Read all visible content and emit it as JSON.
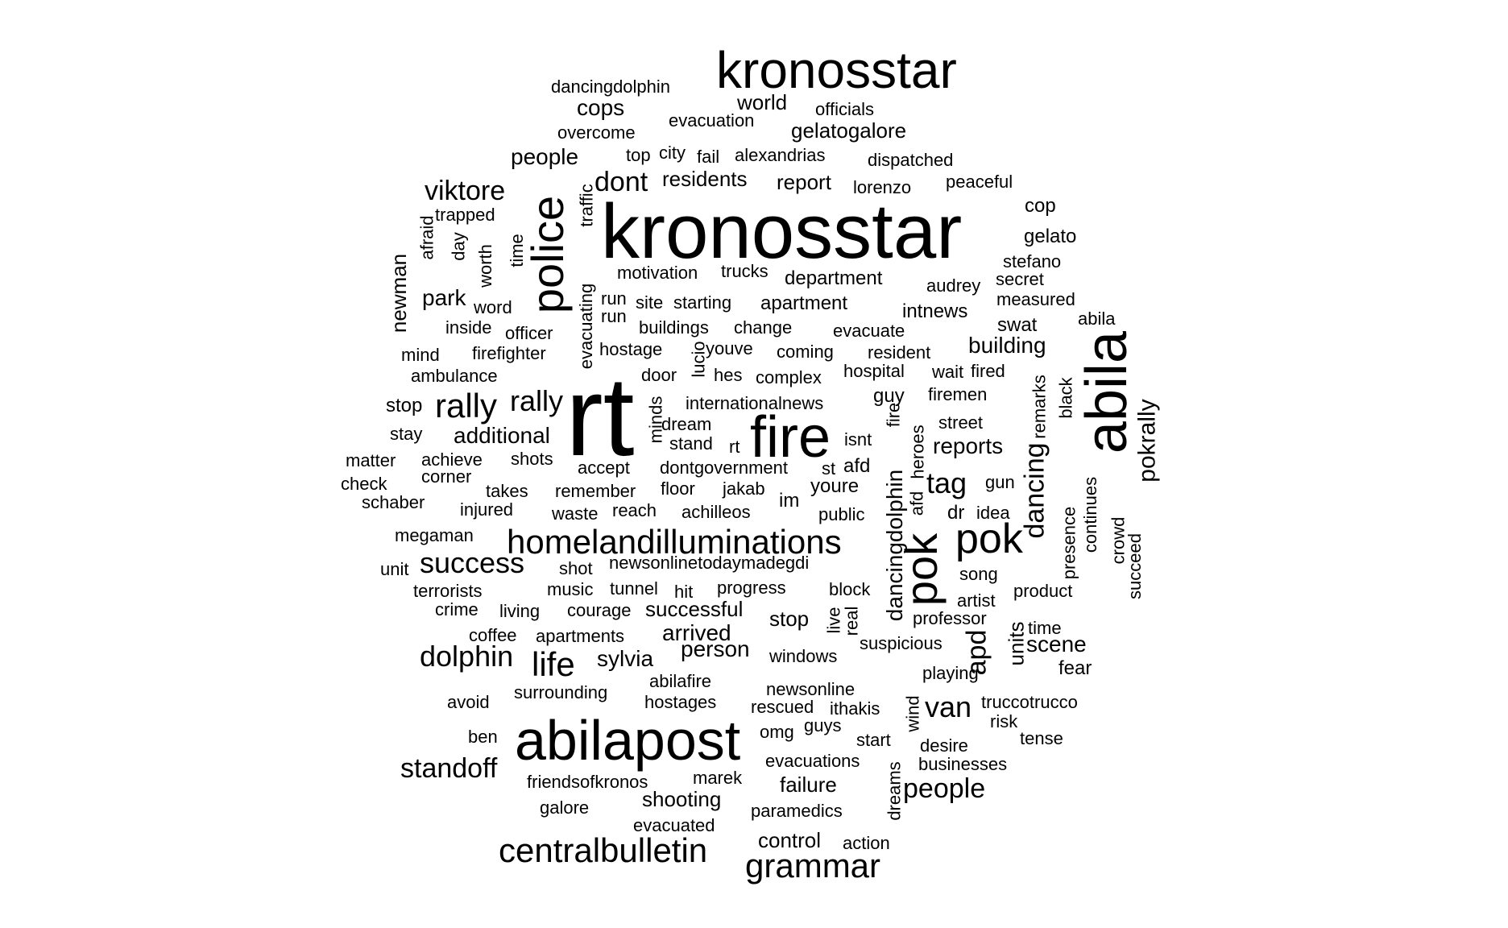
{
  "word_cloud": {
    "text_color": "#000000",
    "background_color": "#ffffff",
    "words": [
      {
        "text": "kronosstar",
        "size": "large"
      },
      {
        "text": "kronosstar",
        "size": "large"
      },
      {
        "text": "rt",
        "size": "largest"
      },
      {
        "text": "abilapost",
        "size": "large"
      },
      {
        "text": "abila",
        "size": "large"
      },
      {
        "text": "fire",
        "size": "large"
      },
      {
        "text": "police",
        "size": "large"
      },
      {
        "text": "pok",
        "size": "large"
      },
      {
        "text": "pok",
        "size": "large"
      },
      {
        "text": "homelandilluminations",
        "size": "medium"
      },
      {
        "text": "centralbulletin",
        "size": "medium"
      },
      {
        "text": "grammar",
        "size": "medium"
      },
      {
        "text": "rally",
        "size": "medium"
      },
      {
        "text": "rally",
        "size": "medium"
      },
      {
        "text": "life",
        "size": "medium"
      },
      {
        "text": "dolphin",
        "size": "medium"
      },
      {
        "text": "success",
        "size": "medium"
      },
      {
        "text": "viktore",
        "size": "medium"
      },
      {
        "text": "dancing",
        "size": "medium"
      },
      {
        "text": "van",
        "size": "medium"
      },
      {
        "text": "tag",
        "size": "medium"
      },
      {
        "text": "standoff",
        "size": "medium"
      },
      {
        "text": "people",
        "size": "medium"
      },
      {
        "text": "dancingdolphin",
        "size": "medium"
      },
      {
        "text": "apd",
        "size": "medium"
      },
      {
        "text": "dont",
        "size": "medium"
      },
      {
        "text": "pokrally",
        "size": "medium"
      },
      {
        "text": "newman",
        "size": "small"
      },
      {
        "text": "park",
        "size": "small"
      },
      {
        "text": "people",
        "size": "small"
      },
      {
        "text": "cops",
        "size": "small"
      },
      {
        "text": "residents",
        "size": "small"
      },
      {
        "text": "report",
        "size": "small"
      },
      {
        "text": "gelatogalore",
        "size": "small"
      },
      {
        "text": "world",
        "size": "small"
      },
      {
        "text": "building",
        "size": "small"
      },
      {
        "text": "additional",
        "size": "small"
      },
      {
        "text": "reports",
        "size": "small"
      },
      {
        "text": "arrived",
        "size": "small"
      },
      {
        "text": "person",
        "size": "small"
      },
      {
        "text": "sylvia",
        "size": "small"
      },
      {
        "text": "scene",
        "size": "small"
      },
      {
        "text": "units",
        "size": "small"
      },
      {
        "text": "shooting",
        "size": "small"
      },
      {
        "text": "failure",
        "size": "small"
      },
      {
        "text": "control",
        "size": "small"
      },
      {
        "text": "successful",
        "size": "small"
      },
      {
        "text": "stop",
        "size": "small"
      },
      {
        "text": "stop",
        "size": "small"
      },
      {
        "text": "department",
        "size": "small"
      },
      {
        "text": "apartment",
        "size": "small"
      },
      {
        "text": "intnews",
        "size": "small"
      },
      {
        "text": "swat",
        "size": "small"
      },
      {
        "text": "gelato",
        "size": "small"
      },
      {
        "text": "cop",
        "size": "small"
      },
      {
        "text": "guy",
        "size": "small"
      },
      {
        "text": "afd",
        "size": "small"
      },
      {
        "text": "youre",
        "size": "small"
      },
      {
        "text": "im",
        "size": "small"
      },
      {
        "text": "dr",
        "size": "small"
      },
      {
        "text": "fear",
        "size": "small"
      },
      {
        "text": "dancingdolphin",
        "size": "tiny"
      },
      {
        "text": "evacuation",
        "size": "tiny"
      },
      {
        "text": "officials",
        "size": "tiny"
      },
      {
        "text": "overcome",
        "size": "tiny"
      },
      {
        "text": "top",
        "size": "tiny"
      },
      {
        "text": "city",
        "size": "tiny"
      },
      {
        "text": "fail",
        "size": "tiny"
      },
      {
        "text": "alexandrias",
        "size": "tiny"
      },
      {
        "text": "dispatched",
        "size": "tiny"
      },
      {
        "text": "lorenzo",
        "size": "tiny"
      },
      {
        "text": "peaceful",
        "size": "tiny"
      },
      {
        "text": "afraid",
        "size": "tiny"
      },
      {
        "text": "trapped",
        "size": "tiny"
      },
      {
        "text": "day",
        "size": "tiny"
      },
      {
        "text": "worth",
        "size": "tiny"
      },
      {
        "text": "time",
        "size": "tiny"
      },
      {
        "text": "evacuating",
        "size": "tiny"
      },
      {
        "text": "traffic",
        "size": "tiny"
      },
      {
        "text": "motivation",
        "size": "tiny"
      },
      {
        "text": "trucks",
        "size": "tiny"
      },
      {
        "text": "stefano",
        "size": "tiny"
      },
      {
        "text": "audrey",
        "size": "tiny"
      },
      {
        "text": "secret",
        "size": "tiny"
      },
      {
        "text": "measured",
        "size": "tiny"
      },
      {
        "text": "word",
        "size": "tiny"
      },
      {
        "text": "run",
        "size": "tiny"
      },
      {
        "text": "run",
        "size": "tiny"
      },
      {
        "text": "site",
        "size": "tiny"
      },
      {
        "text": "starting",
        "size": "tiny"
      },
      {
        "text": "abila",
        "size": "tiny"
      },
      {
        "text": "inside",
        "size": "tiny"
      },
      {
        "text": "officer",
        "size": "tiny"
      },
      {
        "text": "buildings",
        "size": "tiny"
      },
      {
        "text": "change",
        "size": "tiny"
      },
      {
        "text": "evacuate",
        "size": "tiny"
      },
      {
        "text": "mind",
        "size": "tiny"
      },
      {
        "text": "firefighter",
        "size": "tiny"
      },
      {
        "text": "hostage",
        "size": "tiny"
      },
      {
        "text": "youve",
        "size": "tiny"
      },
      {
        "text": "coming",
        "size": "tiny"
      },
      {
        "text": "resident",
        "size": "tiny"
      },
      {
        "text": "ambulance",
        "size": "tiny"
      },
      {
        "text": "door",
        "size": "tiny"
      },
      {
        "text": "lucio",
        "size": "tiny"
      },
      {
        "text": "hes",
        "size": "tiny"
      },
      {
        "text": "complex",
        "size": "tiny"
      },
      {
        "text": "hospital",
        "size": "tiny"
      },
      {
        "text": "wait",
        "size": "tiny"
      },
      {
        "text": "fired",
        "size": "tiny"
      },
      {
        "text": "remarks",
        "size": "tiny"
      },
      {
        "text": "black",
        "size": "tiny"
      },
      {
        "text": "internationalnews",
        "size": "tiny"
      },
      {
        "text": "firemen",
        "size": "tiny"
      },
      {
        "text": "stay",
        "size": "tiny"
      },
      {
        "text": "minds",
        "size": "tiny"
      },
      {
        "text": "dream",
        "size": "tiny"
      },
      {
        "text": "stand",
        "size": "tiny"
      },
      {
        "text": "rt",
        "size": "tiny"
      },
      {
        "text": "isnt",
        "size": "tiny"
      },
      {
        "text": "fire",
        "size": "tiny"
      },
      {
        "text": "heroes",
        "size": "tiny"
      },
      {
        "text": "street",
        "size": "tiny"
      },
      {
        "text": "matter",
        "size": "tiny"
      },
      {
        "text": "achieve",
        "size": "tiny"
      },
      {
        "text": "shots",
        "size": "tiny"
      },
      {
        "text": "accept",
        "size": "tiny"
      },
      {
        "text": "dontgovernment",
        "size": "tiny"
      },
      {
        "text": "st",
        "size": "tiny"
      },
      {
        "text": "corner",
        "size": "tiny"
      },
      {
        "text": "check",
        "size": "tiny"
      },
      {
        "text": "takes",
        "size": "tiny"
      },
      {
        "text": "remember",
        "size": "tiny"
      },
      {
        "text": "floor",
        "size": "tiny"
      },
      {
        "text": "jakab",
        "size": "tiny"
      },
      {
        "text": "afd",
        "size": "tiny"
      },
      {
        "text": "gun",
        "size": "tiny"
      },
      {
        "text": "schaber",
        "size": "tiny"
      },
      {
        "text": "injured",
        "size": "tiny"
      },
      {
        "text": "waste",
        "size": "tiny"
      },
      {
        "text": "reach",
        "size": "tiny"
      },
      {
        "text": "achilleos",
        "size": "tiny"
      },
      {
        "text": "public",
        "size": "tiny"
      },
      {
        "text": "idea",
        "size": "tiny"
      },
      {
        "text": "continues",
        "size": "tiny"
      },
      {
        "text": "crowd",
        "size": "tiny"
      },
      {
        "text": "presence",
        "size": "tiny"
      },
      {
        "text": "succeed",
        "size": "tiny"
      },
      {
        "text": "megaman",
        "size": "tiny"
      },
      {
        "text": "unit",
        "size": "tiny"
      },
      {
        "text": "shot",
        "size": "tiny"
      },
      {
        "text": "newsonlinetodaymadegdi",
        "size": "tiny"
      },
      {
        "text": "song",
        "size": "tiny"
      },
      {
        "text": "terrorists",
        "size": "tiny"
      },
      {
        "text": "music",
        "size": "tiny"
      },
      {
        "text": "tunnel",
        "size": "tiny"
      },
      {
        "text": "hit",
        "size": "tiny"
      },
      {
        "text": "progress",
        "size": "tiny"
      },
      {
        "text": "block",
        "size": "tiny"
      },
      {
        "text": "artist",
        "size": "tiny"
      },
      {
        "text": "product",
        "size": "tiny"
      },
      {
        "text": "crime",
        "size": "tiny"
      },
      {
        "text": "living",
        "size": "tiny"
      },
      {
        "text": "courage",
        "size": "tiny"
      },
      {
        "text": "live",
        "size": "tiny"
      },
      {
        "text": "real",
        "size": "tiny"
      },
      {
        "text": "professor",
        "size": "tiny"
      },
      {
        "text": "time",
        "size": "tiny"
      },
      {
        "text": "coffee",
        "size": "tiny"
      },
      {
        "text": "apartments",
        "size": "tiny"
      },
      {
        "text": "windows",
        "size": "tiny"
      },
      {
        "text": "suspicious",
        "size": "tiny"
      },
      {
        "text": "abilafire",
        "size": "tiny"
      },
      {
        "text": "playing",
        "size": "tiny"
      },
      {
        "text": "surrounding",
        "size": "tiny"
      },
      {
        "text": "newsonline",
        "size": "tiny"
      },
      {
        "text": "avoid",
        "size": "tiny"
      },
      {
        "text": "hostages",
        "size": "tiny"
      },
      {
        "text": "rescued",
        "size": "tiny"
      },
      {
        "text": "ithakis",
        "size": "tiny"
      },
      {
        "text": "wind",
        "size": "tiny"
      },
      {
        "text": "truccotrucco",
        "size": "tiny"
      },
      {
        "text": "guys",
        "size": "tiny"
      },
      {
        "text": "risk",
        "size": "tiny"
      },
      {
        "text": "ben",
        "size": "tiny"
      },
      {
        "text": "omg",
        "size": "tiny"
      },
      {
        "text": "start",
        "size": "tiny"
      },
      {
        "text": "tense",
        "size": "tiny"
      },
      {
        "text": "desire",
        "size": "tiny"
      },
      {
        "text": "evacuations",
        "size": "tiny"
      },
      {
        "text": "businesses",
        "size": "tiny"
      },
      {
        "text": "friendsofkronos",
        "size": "tiny"
      },
      {
        "text": "marek",
        "size": "tiny"
      },
      {
        "text": "dreams",
        "size": "tiny"
      },
      {
        "text": "galore",
        "size": "tiny"
      },
      {
        "text": "paramedics",
        "size": "tiny"
      },
      {
        "text": "evacuated",
        "size": "tiny"
      },
      {
        "text": "action",
        "size": "tiny"
      }
    ]
  }
}
